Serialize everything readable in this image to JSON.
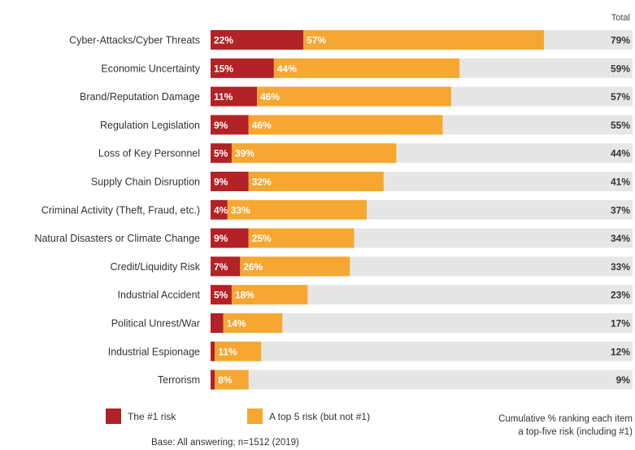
{
  "chart_data": {
    "type": "bar",
    "orientation": "horizontal",
    "stacked": true,
    "total_header": "Total",
    "categories": [
      "Cyber-Attacks/Cyber Threats",
      "Economic Uncertainty",
      "Brand/Reputation Damage",
      "Regulation Legislation",
      "Loss of Key Personnel",
      "Supply Chain Disruption",
      "Criminal Activity (Theft, Fraud, etc.)",
      "Natural Disasters or Climate Change",
      "Credit/Liquidity Risk",
      "Industrial Accident",
      "Political Unrest/War",
      "Industrial Espionage",
      "Terrorism"
    ],
    "series": [
      {
        "name": "The #1 risk",
        "color": "#b22226",
        "values": [
          22,
          15,
          11,
          9,
          5,
          9,
          4,
          9,
          7,
          5,
          3,
          1,
          1
        ],
        "labels": [
          "22%",
          "15%",
          "11%",
          "9%",
          "5%",
          "9%",
          "4%",
          "9%",
          "7%",
          "5%",
          "",
          "",
          ""
        ]
      },
      {
        "name": "A top 5 risk (but not #1)",
        "color": "#f6a732",
        "values": [
          57,
          44,
          46,
          46,
          39,
          32,
          33,
          25,
          26,
          18,
          14,
          11,
          8
        ],
        "labels": [
          "57%",
          "44%",
          "46%",
          "46%",
          "39%",
          "32%",
          "33%",
          "25%",
          "26%",
          "18%",
          "14%",
          "11%",
          "8%"
        ]
      }
    ],
    "totals": [
      "79%",
      "59%",
      "57%",
      "55%",
      "44%",
      "41%",
      "37%",
      "34%",
      "33%",
      "23%",
      "17%",
      "12%",
      "9%"
    ],
    "xlim": [
      0,
      100
    ],
    "background_color": "#e6e6e6",
    "grid": false
  },
  "legend": {
    "item1": "The #1 risk",
    "item2": "A top 5 risk (but not #1)",
    "note_line1": "Cumulative % ranking each item",
    "note_line2": "a top-five risk (including #1)"
  },
  "base_note": "Base: All answering; n=1512 (2019)"
}
